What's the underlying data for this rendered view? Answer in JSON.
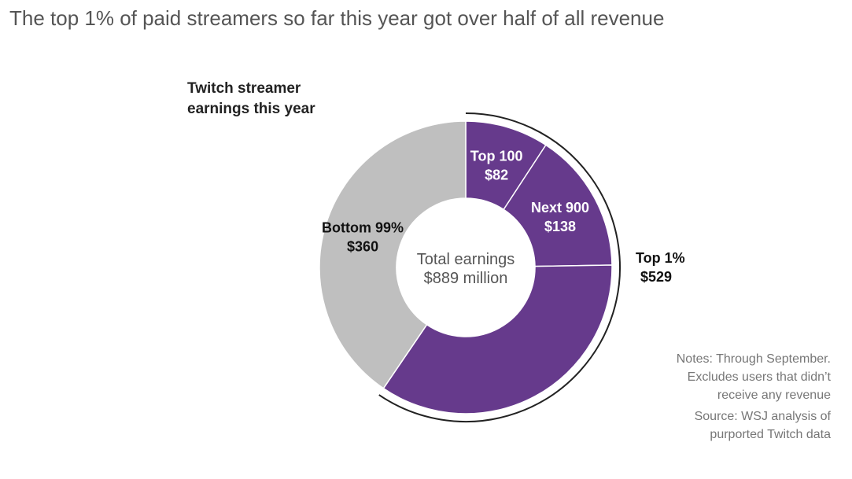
{
  "title": "The top 1% of paid streamers so far this year got over half of all revenue",
  "subtitle": "Twitch streamer earnings this year",
  "center_label": {
    "line1": "Total earnings",
    "line2": "$889 million"
  },
  "bracket_label": {
    "line1": "Top 1%",
    "line2": "$529"
  },
  "notes": "Notes: Through September. Excludes users that didn’t receive any revenue",
  "source": "Source: WSJ analysis of purported Twitch data",
  "colors": {
    "purple": "#663a8c",
    "gray": "#bfbfbf",
    "bracket": "#222222"
  },
  "chart_data": {
    "type": "pie",
    "variant": "donut",
    "units": "$ million",
    "slices": [
      {
        "label": "Top 100",
        "value_label": "$82",
        "value": 82,
        "color": "#663a8c",
        "text_color": "#ffffff"
      },
      {
        "label": "Next 900",
        "value_label": "$138",
        "value": 138,
        "color": "#663a8c",
        "text_color": "#ffffff"
      },
      {
        "label": "",
        "value_label": "",
        "value": 309,
        "color": "#663a8c",
        "text_color": "#ffffff"
      },
      {
        "label": "Bottom 99%",
        "value_label": "$360",
        "value": 360,
        "color": "#bfbfbf",
        "text_color": "#111111"
      }
    ],
    "total": 889
  }
}
